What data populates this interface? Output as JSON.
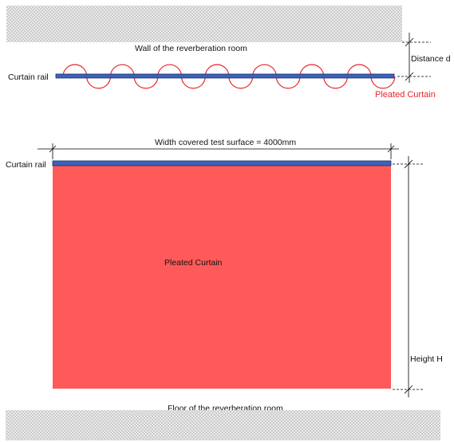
{
  "labels": {
    "wall": "Wall of the reverberation room",
    "floor": "Floor of the reverberation room",
    "curtain_rail_top": "Curtain rail",
    "curtain_rail_front": "Curtain rail",
    "distance": "Distance d",
    "pleated_curtain_top": "Pleated Curtain",
    "pleated_curtain_front": "Pleated Curtain",
    "width": "Width covered test surface =  4000mm",
    "height": "Height H"
  },
  "colors": {
    "curtain_fill": "#ff5a5a",
    "curtain_line": "#e8262a",
    "rail_fill": "#3d62b8",
    "rail_stroke": "#1b2f6b",
    "hatch_bg": "#e9e9e9",
    "hatch_dot": "#5a5a5a"
  }
}
